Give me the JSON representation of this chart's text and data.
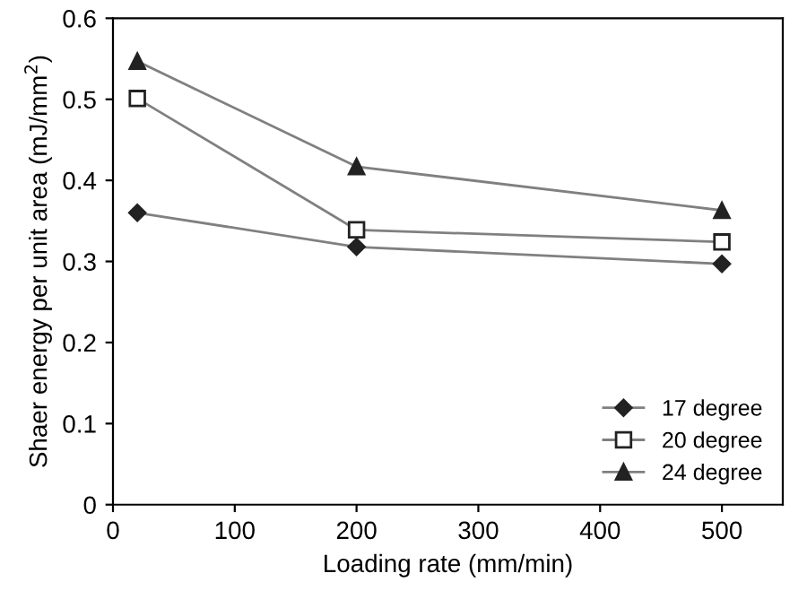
{
  "chart_data": {
    "type": "line",
    "xlabel": "Loading rate (mm/min)",
    "ylabel": "Shaer energy per unit area (mJ/mm$^{2}$)",
    "xlim": [
      0,
      550
    ],
    "xticks": [
      0,
      100,
      200,
      300,
      400,
      500
    ],
    "ylim": [
      0,
      0.6
    ],
    "yticks": [
      0,
      0.1,
      0.2,
      0.3,
      0.4,
      0.5,
      0.6
    ],
    "grid": false,
    "legend": "bottom right",
    "series": [
      {
        "name": "17 degree",
        "color": "#222222",
        "marker": "diamond",
        "x": [
          20,
          200,
          500
        ],
        "values": [
          0.36,
          0.318,
          0.297
        ]
      },
      {
        "name": "20 degree",
        "color": "#222222",
        "marker": "square",
        "x": [
          20,
          200,
          500
        ],
        "values": [
          0.501,
          0.339,
          0.324
        ]
      },
      {
        "name": "24 degree",
        "color": "#222222",
        "marker": "triangle",
        "x": [
          20,
          200,
          500
        ],
        "values": [
          0.547,
          0.417,
          0.363
        ]
      }
    ]
  }
}
